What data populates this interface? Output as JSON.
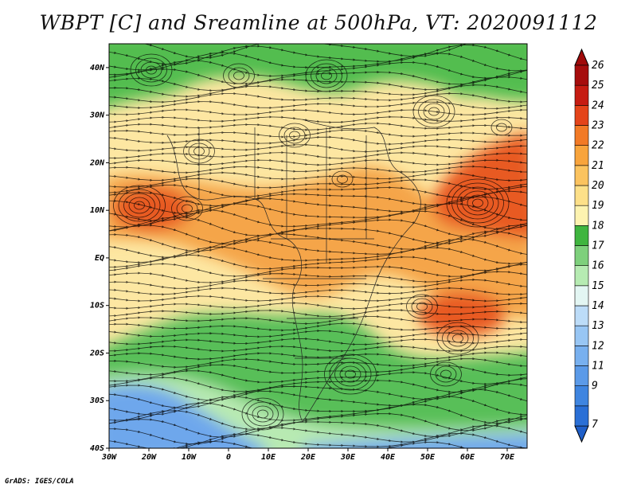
{
  "title": "WBPT [C] and Sreamline at 500hPa, VT: 2020091112",
  "credit": "GrADS: IGES/COLA",
  "map": {
    "lon_range": [
      -30,
      75
    ],
    "lat_range": [
      -40,
      45
    ],
    "lat_ticks": [
      {
        "value": 40,
        "label": "40N"
      },
      {
        "value": 30,
        "label": "30N"
      },
      {
        "value": 20,
        "label": "20N"
      },
      {
        "value": 10,
        "label": "10N"
      },
      {
        "value": 0,
        "label": "EQ"
      },
      {
        "value": -10,
        "label": "10S"
      },
      {
        "value": -20,
        "label": "20S"
      },
      {
        "value": -30,
        "label": "30S"
      },
      {
        "value": -40,
        "label": "40S"
      }
    ],
    "lon_ticks": [
      {
        "value": -30,
        "label": "30W"
      },
      {
        "value": -20,
        "label": "20W"
      },
      {
        "value": -10,
        "label": "10W"
      },
      {
        "value": 0,
        "label": "0"
      },
      {
        "value": 10,
        "label": "10E"
      },
      {
        "value": 20,
        "label": "20E"
      },
      {
        "value": 30,
        "label": "30E"
      },
      {
        "value": 40,
        "label": "40E"
      },
      {
        "value": 50,
        "label": "50E"
      },
      {
        "value": 60,
        "label": "60E"
      },
      {
        "value": 70,
        "label": "70E"
      }
    ]
  },
  "colorbar": {
    "levels": [
      {
        "label": "7",
        "color": "#2a6fd6"
      },
      {
        "label": "9",
        "color": "#3f85e0"
      },
      {
        "label": "11",
        "color": "#5b9ae8"
      },
      {
        "label": "12",
        "color": "#78b0ef"
      },
      {
        "label": "13",
        "color": "#98c6f4"
      },
      {
        "label": "14",
        "color": "#bcdcf8"
      },
      {
        "label": "15",
        "color": "#e3f6f3"
      },
      {
        "label": "16",
        "color": "#b6ebb2"
      },
      {
        "label": "17",
        "color": "#7ed07c"
      },
      {
        "label": "18",
        "color": "#3fb53f"
      },
      {
        "label": "19",
        "color": "#fdf3b0"
      },
      {
        "label": "20",
        "color": "#fde089"
      },
      {
        "label": "21",
        "color": "#fbc35f"
      },
      {
        "label": "22",
        "color": "#f8a43c"
      },
      {
        "label": "23",
        "color": "#f27a26"
      },
      {
        "label": "24",
        "color": "#e4441a"
      },
      {
        "label": "25",
        "color": "#c61c12"
      },
      {
        "label": "26",
        "color": "#a60d0d"
      }
    ],
    "under_color": "#1f5fc9",
    "over_color": "#a00b0b"
  },
  "regions": [
    {
      "name": "north-green",
      "color": "#52bd50"
    },
    {
      "name": "sahara-cream",
      "color": "#fde7a2"
    },
    {
      "name": "sahel-orange",
      "color": "#f5a54a"
    },
    {
      "name": "arabian-red",
      "color": "#e85a22"
    },
    {
      "name": "south-green",
      "color": "#58bf58"
    },
    {
      "name": "south-lightgreen",
      "color": "#b8eab2"
    },
    {
      "name": "south-blue",
      "color": "#6ea7ec"
    }
  ]
}
